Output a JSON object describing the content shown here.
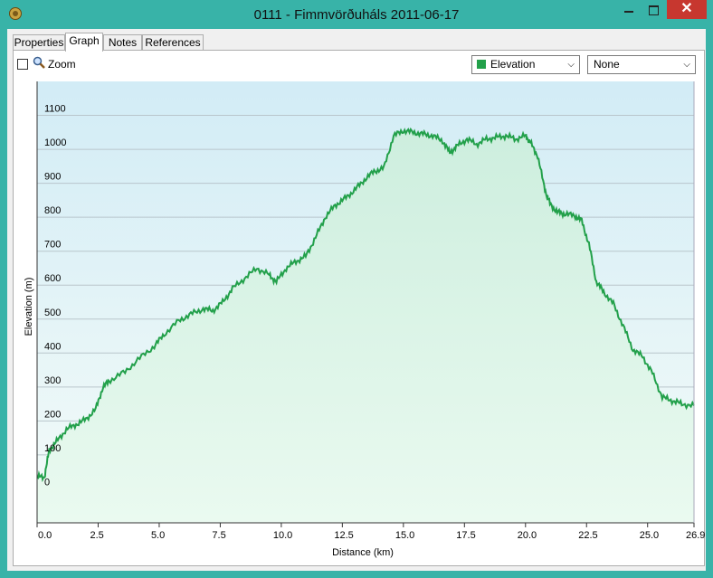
{
  "window": {
    "title": "0111 - Fimmvörðuháls 2011-06-17",
    "close_glyph": "✕"
  },
  "tabs": [
    {
      "label": "Properties"
    },
    {
      "label": "Graph"
    },
    {
      "label": "Notes"
    },
    {
      "label": "References"
    }
  ],
  "toolbar": {
    "zoom_label": "Zoom",
    "zoom_checked": false,
    "primary_select": {
      "value": "Elevation",
      "swatch_color": "#22a04a"
    },
    "secondary_select": {
      "value": "None"
    }
  },
  "icons": {
    "app": "app-logo-icon",
    "zoom": "magnifier-icon",
    "dropdown": "chevron-down-icon"
  },
  "chart_data": {
    "type": "area",
    "xlabel": "Distance  (km)",
    "ylabel": "Elevation (m)",
    "xlim": [
      0,
      26.9
    ],
    "ylim": [
      -100,
      1200
    ],
    "x_ticks": [
      0.0,
      2.5,
      5.0,
      7.5,
      10.0,
      12.5,
      15.0,
      17.5,
      20.0,
      22.5,
      25.0,
      26.9
    ],
    "x_tick_labels": [
      "0.0",
      "2.5",
      "5.0",
      "7.5",
      "10.0",
      "12.5",
      "15.0",
      "17.5",
      "20.0",
      "22.5",
      "25.0",
      "26.9"
    ],
    "y_ticks": [
      0,
      100,
      200,
      300,
      400,
      500,
      600,
      700,
      800,
      900,
      1000,
      1100
    ],
    "y_tick_labels": [
      "0",
      "100",
      "200",
      "300",
      "400",
      "500",
      "600",
      "700",
      "800",
      "900",
      "1000",
      "1100"
    ],
    "grid": true,
    "line_color": "#22a04a",
    "series": [
      {
        "x": [
          0.0,
          0.3,
          0.5,
          0.8,
          1.2,
          1.6,
          2.0,
          2.4,
          2.7,
          3.0,
          3.6,
          4.2,
          4.8,
          5.2,
          5.8,
          6.3,
          6.8,
          7.2,
          7.6,
          8.0,
          8.5,
          9.0,
          9.5,
          9.8,
          10.2,
          10.6,
          11.0,
          11.4,
          11.8,
          12.2,
          12.6,
          13.0,
          13.4,
          13.8,
          14.2,
          14.6,
          15.0,
          15.4,
          15.8,
          16.2,
          16.6,
          16.9,
          17.2,
          17.6,
          18.0,
          18.4,
          18.8,
          19.2,
          19.6,
          20.0,
          20.2,
          20.5,
          20.8,
          21.0,
          21.3,
          21.6,
          22.0,
          22.3,
          22.6,
          22.9,
          23.2,
          23.6,
          24.0,
          24.4,
          24.8,
          25.2,
          25.6,
          26.0,
          26.4,
          26.9
        ],
        "y": [
          35,
          35,
          115,
          140,
          175,
          190,
          205,
          235,
          300,
          320,
          345,
          385,
          420,
          455,
          495,
          515,
          530,
          525,
          550,
          590,
          620,
          650,
          630,
          610,
          650,
          670,
          685,
          740,
          800,
          835,
          855,
          880,
          910,
          935,
          945,
          1040,
          1055,
          1050,
          1045,
          1040,
          1025,
          990,
          1010,
          1030,
          1015,
          1030,
          1035,
          1040,
          1030,
          1040,
          1020,
          980,
          880,
          840,
          815,
          810,
          805,
          790,
          720,
          610,
          580,
          545,
          480,
          410,
          390,
          340,
          270,
          260,
          250,
          245
        ]
      }
    ]
  }
}
